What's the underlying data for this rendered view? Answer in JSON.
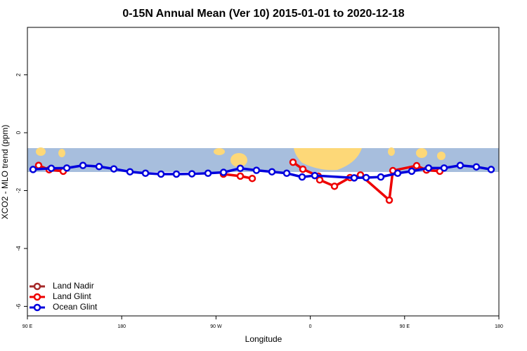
{
  "chart_data": {
    "type": "line",
    "title": "0-15N Annual Mean (Ver 10)   2015-01-01 to 2020-12-18",
    "xlabel": "Longitude",
    "ylabel": "XCO2 - MLO trend (ppm)",
    "xlim": [
      90,
      540
    ],
    "xticks": [
      {
        "value": 90,
        "label": "90 E"
      },
      {
        "value": 180,
        "label": "180"
      },
      {
        "value": 270,
        "label": "90 W"
      },
      {
        "value": 360,
        "label": "0"
      },
      {
        "value": 450,
        "label": "90 E"
      },
      {
        "value": 540,
        "label": "180"
      }
    ],
    "ylim": [
      -6.33,
      3.64
    ],
    "yticks": [
      -6,
      -4,
      -2,
      0,
      2
    ],
    "legend": "bottom-left",
    "series": [
      {
        "name": "Land Nadir",
        "color": "#a52a2a",
        "x": [],
        "values": []
      },
      {
        "name": "Land Glint",
        "color": "#ee0000",
        "x": [
          100.7,
          110.8,
          124.2,
          null,
          277.1,
          293.2,
          304.6,
          null,
          343.5,
          352.9,
          367.6,
          369,
          383.1,
          397.9,
          407.9,
          435.4,
          438.8,
          461.5,
          470.9,
          483.6
        ],
        "values": [
          -1.13,
          -1.28,
          -1.33,
          null,
          -1.43,
          -1.5,
          -1.58,
          null,
          -1.02,
          -1.26,
          -1.5,
          -1.63,
          -1.85,
          -1.55,
          -1.46,
          -2.33,
          -1.31,
          -1.14,
          -1.29,
          -1.33
        ]
      },
      {
        "name": "Ocean Glint",
        "color": "#0000dd",
        "x": [
          95.4,
          112.8,
          127.6,
          143,
          158.4,
          172.5,
          187.9,
          202.7,
          217.5,
          232.2,
          247,
          262.4,
          277.2,
          293.2,
          308.6,
          323.4,
          337.5,
          352.2,
          364.3,
          401.9,
          413.3,
          427.3,
          443.4,
          456.8,
          472.9,
          487.7,
          503.1,
          518.5,
          532.6
        ],
        "values": [
          -1.27,
          -1.23,
          -1.22,
          -1.13,
          -1.17,
          -1.25,
          -1.35,
          -1.4,
          -1.43,
          -1.43,
          -1.42,
          -1.4,
          -1.37,
          -1.23,
          -1.3,
          -1.35,
          -1.4,
          -1.53,
          -1.48,
          -1.56,
          -1.55,
          -1.53,
          -1.4,
          -1.33,
          -1.22,
          -1.22,
          -1.13,
          -1.18,
          -1.27
        ]
      }
    ]
  }
}
